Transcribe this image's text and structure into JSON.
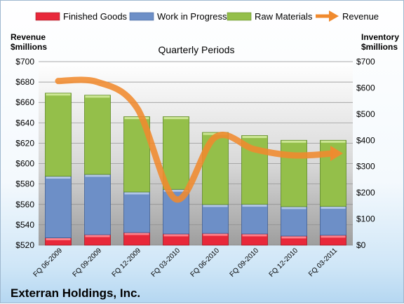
{
  "company": "Exterran Holdings, Inc.",
  "chart_data": {
    "type": "bar",
    "stacked": true,
    "title": "Quarterly Periods",
    "categories": [
      "FQ 06-2009",
      "FQ 09-2009",
      "FQ 12-2009",
      "FQ 03-2010",
      "FQ 06-2010",
      "FQ 09-2010",
      "FQ 12-2010",
      "FQ 03-2011"
    ],
    "left_axis": {
      "label_line1": "Revenue",
      "label_line2": "$millions",
      "ylim": [
        520,
        700
      ],
      "ticks": [
        "$520",
        "$540",
        "$560",
        "$580",
        "$600",
        "$620",
        "$640",
        "$660",
        "$680",
        "$700"
      ]
    },
    "right_axis": {
      "label_line1": "Inventory",
      "label_line2": "$millions",
      "ylim": [
        0,
        700
      ],
      "ticks": [
        "$0",
        "$100",
        "$200",
        "$300",
        "$400",
        "$500",
        "$600",
        "$700"
      ]
    },
    "series": [
      {
        "name": "Finished Goods",
        "axis": "right",
        "color": "#e8283a",
        "values": [
          28,
          40,
          48,
          43,
          45,
          43,
          35,
          38
        ]
      },
      {
        "name": "Work in Progress",
        "axis": "right",
        "color": "#6d8fc7",
        "values": [
          235,
          230,
          155,
          170,
          110,
          113,
          112,
          110
        ]
      },
      {
        "name": "Raw Materials",
        "axis": "right",
        "color": "#94bf4a",
        "values": [
          317,
          302,
          287,
          277,
          275,
          262,
          253,
          252
        ]
      },
      {
        "name": "Revenue",
        "axis": "left",
        "type": "line",
        "color": "#f08a2e",
        "values": [
          681,
          680,
          655,
          565,
          626,
          614,
          608,
          610
        ]
      }
    ],
    "legend_position": "top",
    "grid": true
  }
}
